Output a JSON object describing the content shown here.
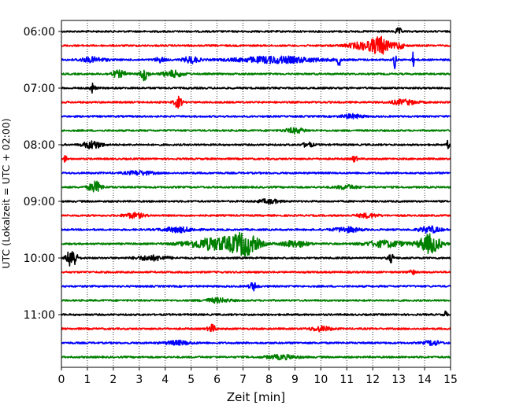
{
  "chart_data": {
    "type": "line",
    "title": "",
    "xlabel": "Zeit  [min]",
    "ylabel": "UTC (Lokalzeit = UTC + 02:00)",
    "xlim": [
      0,
      15
    ],
    "x_ticks": [
      0,
      1,
      2,
      3,
      4,
      5,
      6,
      7,
      8,
      9,
      10,
      11,
      12,
      13,
      14,
      15
    ],
    "x_tick_labels": [
      "0",
      "1",
      "2",
      "3",
      "4",
      "5",
      "6",
      "7",
      "8",
      "9",
      "10",
      "11",
      "12",
      "13",
      "14",
      "15"
    ],
    "y_tick_labels": [
      "06:00",
      "07:00",
      "08:00",
      "09:00",
      "10:00",
      "11:00"
    ],
    "y_tick_trace_index": [
      0,
      4,
      8,
      12,
      16,
      20
    ],
    "trace_interval_minutes": 15,
    "vertical_grid": true,
    "colors": [
      "#000000",
      "#ff0000",
      "#0000ff",
      "#008000"
    ],
    "traces": [
      {
        "start": "06:00",
        "color": "#000000",
        "bursts": [
          [
            13.0,
            0.12,
            4
          ]
        ]
      },
      {
        "start": "06:15",
        "color": "#ff0000",
        "bursts": [
          [
            11.8,
            0.7,
            5
          ],
          [
            12.3,
            0.3,
            9
          ],
          [
            13.0,
            0.2,
            4
          ]
        ]
      },
      {
        "start": "06:30",
        "color": "#0000ff",
        "bursts": [
          [
            1.2,
            0.5,
            3
          ],
          [
            3.8,
            0.2,
            3
          ],
          [
            5.0,
            0.3,
            4
          ],
          [
            8.3,
            1.6,
            4
          ],
          [
            10.7,
            0.06,
            8
          ],
          [
            12.85,
            0.05,
            12
          ],
          [
            13.55,
            0.05,
            9
          ]
        ]
      },
      {
        "start": "06:45",
        "color": "#008000",
        "bursts": [
          [
            2.2,
            0.3,
            4
          ],
          [
            3.2,
            0.15,
            8
          ],
          [
            4.3,
            0.4,
            4
          ]
        ]
      },
      {
        "start": "07:00",
        "color": "#000000",
        "bursts": [
          [
            1.2,
            0.1,
            6
          ]
        ]
      },
      {
        "start": "07:15",
        "color": "#ff0000",
        "bursts": [
          [
            4.5,
            0.15,
            7
          ],
          [
            13.2,
            0.5,
            3
          ]
        ]
      },
      {
        "start": "07:30",
        "color": "#0000ff",
        "bursts": [
          [
            11.2,
            0.4,
            2.5
          ]
        ]
      },
      {
        "start": "07:45",
        "color": "#008000",
        "bursts": [
          [
            9.0,
            0.4,
            3
          ]
        ]
      },
      {
        "start": "08:00",
        "color": "#000000",
        "bursts": [
          [
            1.2,
            0.35,
            5
          ],
          [
            9.5,
            0.2,
            3
          ],
          [
            14.9,
            0.05,
            5
          ]
        ]
      },
      {
        "start": "08:15",
        "color": "#ff0000",
        "bursts": [
          [
            0.15,
            0.05,
            5
          ],
          [
            11.3,
            0.1,
            4
          ]
        ]
      },
      {
        "start": "08:30",
        "color": "#0000ff",
        "bursts": [
          [
            3.0,
            0.5,
            2.5
          ]
        ]
      },
      {
        "start": "08:45",
        "color": "#008000",
        "bursts": [
          [
            1.3,
            0.25,
            7
          ],
          [
            11.0,
            0.4,
            2.5
          ]
        ]
      },
      {
        "start": "09:00",
        "color": "#000000",
        "bursts": [
          [
            8.0,
            0.4,
            2.5
          ]
        ]
      },
      {
        "start": "09:15",
        "color": "#ff0000",
        "bursts": [
          [
            2.8,
            0.4,
            3
          ],
          [
            11.8,
            0.4,
            2.5
          ]
        ]
      },
      {
        "start": "09:30",
        "color": "#0000ff",
        "bursts": [
          [
            4.5,
            0.6,
            3
          ],
          [
            11.0,
            0.5,
            3
          ],
          [
            14.2,
            0.4,
            4
          ]
        ]
      },
      {
        "start": "09:45",
        "color": "#008000",
        "bursts": [
          [
            6.0,
            1.1,
            8
          ],
          [
            7.1,
            0.5,
            12
          ],
          [
            9.0,
            0.5,
            4
          ],
          [
            12.5,
            0.8,
            4
          ],
          [
            14.2,
            0.4,
            12
          ]
        ]
      },
      {
        "start": "10:00",
        "color": "#000000",
        "bursts": [
          [
            0.4,
            0.18,
            14
          ],
          [
            3.5,
            0.6,
            3
          ],
          [
            12.7,
            0.12,
            5
          ]
        ]
      },
      {
        "start": "10:15",
        "color": "#ff0000",
        "bursts": [
          [
            13.5,
            0.1,
            4
          ]
        ]
      },
      {
        "start": "10:30",
        "color": "#0000ff",
        "bursts": [
          [
            7.4,
            0.15,
            5
          ]
        ]
      },
      {
        "start": "10:45",
        "color": "#008000",
        "bursts": [
          [
            6.0,
            0.5,
            2.5
          ]
        ]
      },
      {
        "start": "11:00",
        "color": "#000000",
        "bursts": [
          [
            14.8,
            0.06,
            4
          ]
        ]
      },
      {
        "start": "11:15",
        "color": "#ff0000",
        "bursts": [
          [
            5.8,
            0.15,
            5
          ],
          [
            10.0,
            0.4,
            3
          ]
        ]
      },
      {
        "start": "11:30",
        "color": "#0000ff",
        "bursts": [
          [
            4.5,
            0.5,
            2.5
          ],
          [
            14.3,
            0.3,
            3
          ]
        ]
      },
      {
        "start": "11:45",
        "color": "#008000",
        "bursts": [
          [
            8.5,
            0.6,
            2.5
          ]
        ]
      }
    ]
  }
}
